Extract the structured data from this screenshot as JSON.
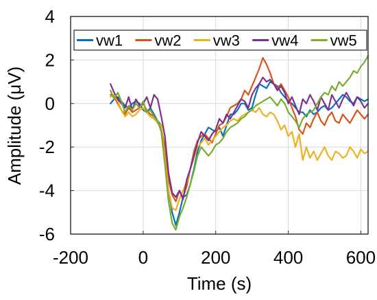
{
  "chart_data": {
    "type": "line",
    "xlabel": "Time (s)",
    "ylabel": "Amplitude (μV)",
    "xlim": [
      -200,
      620
    ],
    "ylim": [
      -6,
      4
    ],
    "xticks": [
      -200,
      0,
      200,
      400,
      600
    ],
    "yticks": [
      -6,
      -4,
      -2,
      0,
      2,
      4
    ],
    "grid": true,
    "legend_position": "top",
    "series": [
      {
        "name": "vw1",
        "color": "#0072BD",
        "x": [
          -90,
          -80,
          -70,
          -60,
          -50,
          -40,
          -30,
          -20,
          -10,
          0,
          10,
          20,
          30,
          40,
          50,
          60,
          70,
          80,
          90,
          100,
          110,
          120,
          130,
          140,
          150,
          160,
          170,
          180,
          190,
          200,
          210,
          220,
          230,
          240,
          250,
          260,
          270,
          280,
          290,
          300,
          310,
          320,
          330,
          340,
          350,
          360,
          370,
          380,
          390,
          400,
          410,
          420,
          430,
          440,
          450,
          460,
          470,
          480,
          490,
          500,
          510,
          520,
          530,
          540,
          550,
          560,
          570,
          580,
          590,
          600,
          610,
          620
        ],
        "values": [
          0.0,
          0.2,
          0.3,
          0.1,
          -0.1,
          -0.2,
          0.0,
          0.1,
          0.0,
          -0.3,
          -0.4,
          -0.2,
          -0.5,
          -0.8,
          -1.0,
          -2.5,
          -4.0,
          -5.0,
          -5.6,
          -5.0,
          -4.3,
          -4.2,
          -3.7,
          -3.0,
          -2.2,
          -1.7,
          -1.4,
          -1.1,
          -1.2,
          -1.3,
          -1.1,
          -1.5,
          -1.0,
          -0.5,
          -0.5,
          -0.3,
          0.0,
          0.0,
          -0.3,
          -0.2,
          0.4,
          0.9,
          0.8,
          0.7,
          1.0,
          0.9,
          0.8,
          0.5,
          0.3,
          0.1,
          0.0,
          -0.2,
          -0.4,
          -0.4,
          -0.6,
          -0.3,
          -0.5,
          -0.4,
          -0.2,
          -0.1,
          -0.3,
          -0.2,
          0.0,
          0.2,
          0.4,
          0.3,
          0.1,
          0.0,
          0.3,
          0.2,
          0.1,
          0.2
        ]
      },
      {
        "name": "vw2",
        "color": "#D95319",
        "x": [
          -90,
          -80,
          -70,
          -60,
          -50,
          -40,
          -30,
          -20,
          -10,
          0,
          10,
          20,
          30,
          40,
          50,
          60,
          70,
          80,
          90,
          100,
          110,
          120,
          130,
          140,
          150,
          160,
          170,
          180,
          190,
          200,
          210,
          220,
          230,
          240,
          250,
          260,
          270,
          280,
          290,
          300,
          310,
          320,
          330,
          340,
          350,
          360,
          370,
          380,
          390,
          400,
          410,
          420,
          430,
          440,
          450,
          460,
          470,
          480,
          490,
          500,
          510,
          520,
          530,
          540,
          550,
          560,
          570,
          580,
          590,
          600,
          610,
          620
        ],
        "values": [
          0.4,
          0.3,
          0.0,
          -0.3,
          -0.5,
          -0.2,
          -0.4,
          -0.3,
          -0.2,
          0.0,
          -0.3,
          -0.5,
          -0.6,
          -0.9,
          -1.1,
          -2.0,
          -3.5,
          -4.2,
          -4.5,
          -4.0,
          -4.3,
          -3.8,
          -3.0,
          -2.2,
          -1.7,
          -1.5,
          -1.4,
          -1.6,
          -1.8,
          -1.4,
          -1.0,
          -0.9,
          -0.6,
          -0.2,
          -0.1,
          0.0,
          0.2,
          0.6,
          0.4,
          0.8,
          1.2,
          1.6,
          2.1,
          1.8,
          1.4,
          0.9,
          0.7,
          0.9,
          0.6,
          0.3,
          -0.2,
          -0.6,
          -1.2,
          -1.4,
          -0.9,
          -1.1,
          -0.7,
          -0.4,
          -0.8,
          -1.0,
          -0.6,
          -0.4,
          -0.8,
          -0.9,
          -0.5,
          -0.7,
          -0.9,
          -0.6,
          -0.3,
          -0.5,
          -0.7,
          -0.5
        ]
      },
      {
        "name": "vw3",
        "color": "#EDB120",
        "x": [
          -90,
          -80,
          -70,
          -60,
          -50,
          -40,
          -30,
          -20,
          -10,
          0,
          10,
          20,
          30,
          40,
          50,
          60,
          70,
          80,
          90,
          100,
          110,
          120,
          130,
          140,
          150,
          160,
          170,
          180,
          190,
          200,
          210,
          220,
          230,
          240,
          250,
          260,
          270,
          280,
          290,
          300,
          310,
          320,
          330,
          340,
          350,
          360,
          370,
          380,
          390,
          400,
          410,
          420,
          430,
          440,
          450,
          460,
          470,
          480,
          490,
          500,
          510,
          520,
          530,
          540,
          550,
          560,
          570,
          580,
          590,
          600,
          610,
          620
        ],
        "values": [
          0.3,
          0.4,
          0.1,
          -0.3,
          -0.6,
          -0.4,
          -0.6,
          -0.5,
          -0.3,
          -0.2,
          -0.4,
          -0.6,
          -0.7,
          -0.9,
          -1.0,
          -2.5,
          -4.0,
          -4.8,
          -4.9,
          -4.4,
          -4.0,
          -3.6,
          -3.0,
          -2.5,
          -2.0,
          -1.8,
          -1.6,
          -1.9,
          -1.7,
          -1.5,
          -1.3,
          -1.1,
          -1.0,
          -0.8,
          -0.7,
          -0.8,
          -0.6,
          -0.5,
          -0.4,
          -0.3,
          -0.4,
          -0.2,
          -0.5,
          -0.6,
          -0.4,
          -0.5,
          -0.8,
          -1.2,
          -1.0,
          -1.5,
          -1.3,
          -2.0,
          -1.4,
          -2.6,
          -2.0,
          -2.5,
          -2.2,
          -2.6,
          -2.3,
          -2.0,
          -2.4,
          -2.6,
          -2.2,
          -2.3,
          -2.5,
          -2.4,
          -2.0,
          -2.2,
          -2.5,
          -2.1,
          -2.3,
          -2.2
        ]
      },
      {
        "name": "vw4",
        "color": "#7E2F8E",
        "x": [
          -90,
          -80,
          -70,
          -60,
          -50,
          -40,
          -30,
          -20,
          -10,
          0,
          10,
          20,
          30,
          40,
          50,
          60,
          70,
          80,
          90,
          100,
          110,
          120,
          130,
          140,
          150,
          160,
          170,
          180,
          190,
          200,
          210,
          220,
          230,
          240,
          250,
          260,
          270,
          280,
          290,
          300,
          310,
          320,
          330,
          340,
          350,
          360,
          370,
          380,
          390,
          400,
          410,
          420,
          430,
          440,
          450,
          460,
          470,
          480,
          490,
          500,
          510,
          520,
          530,
          540,
          550,
          560,
          570,
          580,
          590,
          600,
          610,
          620
        ],
        "values": [
          0.9,
          0.5,
          0.2,
          0.0,
          -0.2,
          0.3,
          -0.3,
          0.2,
          -0.1,
          0.0,
          0.3,
          -0.2,
          0.4,
          0.2,
          -0.6,
          -1.5,
          -3.2,
          -4.1,
          -4.3,
          -4.0,
          -4.4,
          -3.5,
          -3.0,
          -2.4,
          -1.8,
          -1.3,
          -1.5,
          -1.7,
          -1.4,
          -1.2,
          -0.7,
          -0.9,
          -0.5,
          -0.7,
          -0.4,
          -0.1,
          0.2,
          0.1,
          -0.2,
          0.4,
          0.7,
          0.9,
          1.2,
          1.0,
          1.1,
          0.9,
          0.6,
          0.8,
          0.5,
          0.0,
          0.3,
          -0.1,
          -0.5,
          0.2,
          0.0,
          0.4,
          0.1,
          -0.3,
          0.3,
          0.0,
          -0.3,
          0.4,
          0.1,
          -0.2,
          0.2,
          0.5,
          0.2,
          -0.1,
          0.3,
          0.1,
          -0.2,
          0.0
        ]
      },
      {
        "name": "vw5",
        "color": "#77AC30",
        "x": [
          -90,
          -80,
          -70,
          -60,
          -50,
          -40,
          -30,
          -20,
          -10,
          0,
          10,
          20,
          30,
          40,
          50,
          60,
          70,
          80,
          90,
          100,
          110,
          120,
          130,
          140,
          150,
          160,
          170,
          180,
          190,
          200,
          210,
          220,
          230,
          240,
          250,
          260,
          270,
          280,
          290,
          300,
          310,
          320,
          330,
          340,
          350,
          360,
          370,
          380,
          390,
          400,
          410,
          420,
          430,
          440,
          450,
          460,
          470,
          480,
          490,
          500,
          510,
          520,
          530,
          540,
          550,
          560,
          570,
          580,
          590,
          600,
          610,
          620
        ],
        "values": [
          0.6,
          0.2,
          0.5,
          0.1,
          -0.4,
          -0.1,
          -0.3,
          0.0,
          -0.2,
          0.1,
          -0.4,
          -0.3,
          -0.6,
          -0.8,
          -1.3,
          -2.8,
          -4.5,
          -5.5,
          -5.8,
          -5.2,
          -4.8,
          -4.3,
          -3.7,
          -3.1,
          -2.4,
          -2.0,
          -2.2,
          -2.4,
          -2.2,
          -1.9,
          -1.8,
          -1.6,
          -1.3,
          -1.1,
          -1.0,
          -0.9,
          -0.7,
          -0.6,
          -0.4,
          -0.3,
          -0.1,
          0.0,
          0.1,
          0.2,
          0.3,
          0.1,
          -0.1,
          0.2,
          0.0,
          -0.4,
          -0.6,
          -0.8,
          -1.1,
          -0.7,
          -0.5,
          -0.4,
          -0.3,
          0.0,
          0.3,
          0.5,
          0.4,
          0.8,
          0.6,
          1.0,
          0.8,
          1.0,
          1.2,
          1.5,
          1.4,
          1.7,
          1.9,
          2.2
        ]
      }
    ]
  }
}
